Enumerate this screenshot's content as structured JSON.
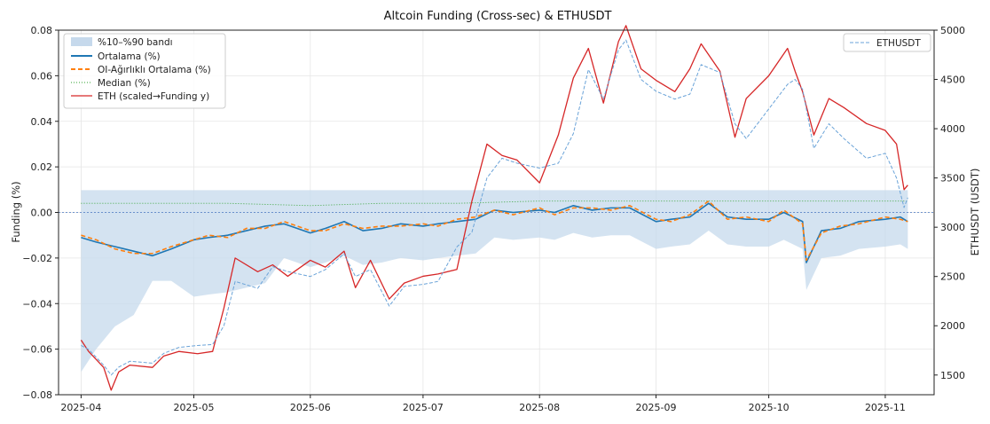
{
  "chart_data": {
    "type": "line",
    "title": "Altcoin Funding (Cross-sec) & ETHUSDT",
    "xlabel": "",
    "ylabel": "Funding (%)",
    "y2label": "ETHUSDT (USDT)",
    "x_ticks": [
      "2025-04",
      "2025-05",
      "2025-06",
      "2025-07",
      "2025-08",
      "2025-09",
      "2025-10",
      "2025-11"
    ],
    "ylim": [
      -0.08,
      0.08
    ],
    "y_ticks": [
      "0.08",
      "0.06",
      "0.04",
      "0.02",
      "0.00",
      "−0.02",
      "−0.04",
      "−0.06",
      "−0.08"
    ],
    "y_tick_values": [
      0.08,
      0.06,
      0.04,
      0.02,
      0.0,
      -0.02,
      -0.04,
      -0.06,
      -0.08
    ],
    "y2lim": [
      1300,
      5000
    ],
    "y2_ticks": [
      "5000",
      "4500",
      "4000",
      "3500",
      "3000",
      "2500",
      "2000",
      "1500"
    ],
    "y2_tick_values": [
      5000,
      4500,
      4000,
      3500,
      3000,
      2500,
      2000,
      1500
    ],
    "grid": true,
    "legend_left": {
      "placement": "top-left",
      "entries": [
        "%10–%90 bandı",
        "Ortalama (%)",
        "OI-Ağırlıklı Ortalama (%)",
        "Median (%)",
        "ETH (scaled→Funding y)"
      ]
    },
    "legend_right": {
      "placement": "top-right",
      "entries": [
        "ETHUSDT"
      ]
    },
    "colors": {
      "band": "#c6d9ec",
      "mean": "#1f77b4",
      "oi_mean": "#ff7f0e",
      "median": "#2ca02c",
      "eth_scaled": "#d62728",
      "ethusdt": "#6aa3d8"
    },
    "series": [
      {
        "name": "Ortalama (%)",
        "x": [
          "2025-04-01",
          "2025-04-05",
          "2025-04-10",
          "2025-04-15",
          "2025-04-20",
          "2025-04-25",
          "2025-05-01",
          "2025-05-05",
          "2025-05-10",
          "2025-05-15",
          "2025-05-20",
          "2025-05-25",
          "2025-06-01",
          "2025-06-05",
          "2025-06-10",
          "2025-06-15",
          "2025-06-20",
          "2025-06-25",
          "2025-07-01",
          "2025-07-05",
          "2025-07-10",
          "2025-07-15",
          "2025-07-20",
          "2025-07-25",
          "2025-08-01",
          "2025-08-05",
          "2025-08-10",
          "2025-08-15",
          "2025-08-20",
          "2025-08-25",
          "2025-09-01",
          "2025-09-05",
          "2025-09-10",
          "2025-09-15",
          "2025-09-20",
          "2025-09-25",
          "2025-10-01",
          "2025-10-05",
          "2025-10-10",
          "2025-10-11",
          "2025-10-15",
          "2025-10-20",
          "2025-10-25",
          "2025-11-01",
          "2025-11-05",
          "2025-11-07"
        ],
        "values": [
          -0.011,
          -0.013,
          -0.015,
          -0.017,
          -0.019,
          -0.016,
          -0.012,
          -0.011,
          -0.01,
          -0.008,
          -0.006,
          -0.005,
          -0.009,
          -0.007,
          -0.004,
          -0.008,
          -0.007,
          -0.005,
          -0.006,
          -0.005,
          -0.004,
          -0.003,
          0.001,
          0.0,
          0.001,
          0.0,
          0.003,
          0.001,
          0.002,
          0.002,
          -0.004,
          -0.003,
          -0.002,
          0.004,
          -0.002,
          -0.003,
          -0.003,
          0.0,
          -0.004,
          -0.022,
          -0.008,
          -0.007,
          -0.004,
          -0.003,
          -0.002,
          -0.004
        ]
      },
      {
        "name": "OI-Ağırlıklı Ortalama (%)",
        "x": [
          "2025-04-01",
          "2025-04-05",
          "2025-04-10",
          "2025-04-15",
          "2025-04-20",
          "2025-04-25",
          "2025-05-01",
          "2025-05-05",
          "2025-05-10",
          "2025-05-15",
          "2025-05-20",
          "2025-05-25",
          "2025-06-01",
          "2025-06-05",
          "2025-06-10",
          "2025-06-15",
          "2025-06-20",
          "2025-06-25",
          "2025-07-01",
          "2025-07-05",
          "2025-07-10",
          "2025-07-15",
          "2025-07-20",
          "2025-07-25",
          "2025-08-01",
          "2025-08-05",
          "2025-08-10",
          "2025-08-15",
          "2025-08-20",
          "2025-08-25",
          "2025-09-01",
          "2025-09-05",
          "2025-09-10",
          "2025-09-15",
          "2025-09-20",
          "2025-09-25",
          "2025-10-01",
          "2025-10-05",
          "2025-10-10",
          "2025-10-11",
          "2025-10-15",
          "2025-10-20",
          "2025-10-25",
          "2025-11-01",
          "2025-11-05",
          "2025-11-07"
        ],
        "values": [
          -0.01,
          -0.012,
          -0.016,
          -0.018,
          -0.018,
          -0.015,
          -0.012,
          -0.01,
          -0.011,
          -0.007,
          -0.007,
          -0.004,
          -0.008,
          -0.008,
          -0.005,
          -0.007,
          -0.006,
          -0.006,
          -0.005,
          -0.006,
          -0.003,
          -0.002,
          0.001,
          -0.001,
          0.002,
          -0.001,
          0.002,
          0.002,
          0.001,
          0.003,
          -0.003,
          -0.004,
          -0.001,
          0.005,
          -0.003,
          -0.002,
          -0.004,
          0.001,
          -0.005,
          -0.021,
          -0.009,
          -0.006,
          -0.005,
          -0.002,
          -0.003,
          -0.004
        ]
      },
      {
        "name": "Median (%)",
        "x": [
          "2025-04-01",
          "2025-04-20",
          "2025-05-10",
          "2025-06-01",
          "2025-06-20",
          "2025-07-10",
          "2025-08-01",
          "2025-09-01",
          "2025-10-01",
          "2025-11-07"
        ],
        "values": [
          0.004,
          0.004,
          0.004,
          0.003,
          0.004,
          0.004,
          0.005,
          0.005,
          0.005,
          0.005
        ]
      },
      {
        "name": "ETH (scaled→Funding y)",
        "x": [
          "2025-04-01",
          "2025-04-03",
          "2025-04-07",
          "2025-04-09",
          "2025-04-11",
          "2025-04-14",
          "2025-04-20",
          "2025-04-23",
          "2025-04-27",
          "2025-05-02",
          "2025-05-06",
          "2025-05-09",
          "2025-05-12",
          "2025-05-18",
          "2025-05-22",
          "2025-05-26",
          "2025-06-01",
          "2025-06-05",
          "2025-06-10",
          "2025-06-13",
          "2025-06-17",
          "2025-06-22",
          "2025-06-26",
          "2025-07-01",
          "2025-07-05",
          "2025-07-10",
          "2025-07-14",
          "2025-07-18",
          "2025-07-22",
          "2025-07-26",
          "2025-08-01",
          "2025-08-06",
          "2025-08-10",
          "2025-08-14",
          "2025-08-18",
          "2025-08-22",
          "2025-08-24",
          "2025-08-28",
          "2025-09-01",
          "2025-09-06",
          "2025-09-10",
          "2025-09-13",
          "2025-09-18",
          "2025-09-22",
          "2025-09-25",
          "2025-10-01",
          "2025-10-06",
          "2025-10-08",
          "2025-10-10",
          "2025-10-13",
          "2025-10-17",
          "2025-10-21",
          "2025-10-27",
          "2025-11-01",
          "2025-11-04",
          "2025-11-06",
          "2025-11-07"
        ],
        "values": [
          -0.056,
          -0.061,
          -0.068,
          -0.078,
          -0.07,
          -0.067,
          -0.068,
          -0.063,
          -0.061,
          -0.062,
          -0.061,
          -0.042,
          -0.02,
          -0.026,
          -0.023,
          -0.028,
          -0.021,
          -0.024,
          -0.017,
          -0.033,
          -0.021,
          -0.038,
          -0.031,
          -0.028,
          -0.027,
          -0.025,
          0.005,
          0.03,
          0.025,
          0.023,
          0.013,
          0.034,
          0.059,
          0.072,
          0.048,
          0.075,
          0.082,
          0.063,
          0.058,
          0.053,
          0.063,
          0.074,
          0.062,
          0.033,
          0.05,
          0.06,
          0.072,
          0.062,
          0.053,
          0.034,
          0.05,
          0.046,
          0.039,
          0.036,
          0.03,
          0.01,
          0.012
        ]
      },
      {
        "name": "ETHUSDT",
        "axis": "right",
        "x": [
          "2025-04-01",
          "2025-04-03",
          "2025-04-07",
          "2025-04-09",
          "2025-04-11",
          "2025-04-14",
          "2025-04-20",
          "2025-04-23",
          "2025-04-27",
          "2025-05-02",
          "2025-05-06",
          "2025-05-09",
          "2025-05-12",
          "2025-05-18",
          "2025-05-22",
          "2025-05-26",
          "2025-06-01",
          "2025-06-05",
          "2025-06-10",
          "2025-06-13",
          "2025-06-17",
          "2025-06-22",
          "2025-06-26",
          "2025-07-01",
          "2025-07-05",
          "2025-07-10",
          "2025-07-14",
          "2025-07-18",
          "2025-07-22",
          "2025-07-26",
          "2025-08-01",
          "2025-08-06",
          "2025-08-10",
          "2025-08-14",
          "2025-08-18",
          "2025-08-22",
          "2025-08-24",
          "2025-08-28",
          "2025-09-01",
          "2025-09-06",
          "2025-09-10",
          "2025-09-13",
          "2025-09-18",
          "2025-09-22",
          "2025-09-25",
          "2025-10-01",
          "2025-10-06",
          "2025-10-08",
          "2025-10-10",
          "2025-10-13",
          "2025-10-17",
          "2025-10-21",
          "2025-10-27",
          "2025-11-01",
          "2025-11-04",
          "2025-11-06",
          "2025-11-07"
        ],
        "values": [
          1800,
          1760,
          1600,
          1500,
          1580,
          1640,
          1620,
          1720,
          1780,
          1800,
          1810,
          2000,
          2450,
          2380,
          2600,
          2550,
          2500,
          2570,
          2730,
          2500,
          2570,
          2200,
          2400,
          2420,
          2450,
          2800,
          2950,
          3500,
          3700,
          3650,
          3600,
          3650,
          3950,
          4600,
          4300,
          4800,
          4900,
          4500,
          4380,
          4300,
          4350,
          4650,
          4570,
          4050,
          3900,
          4200,
          4450,
          4500,
          4400,
          3800,
          4050,
          3900,
          3700,
          3750,
          3500,
          3200,
          3300
        ]
      }
    ]
  }
}
